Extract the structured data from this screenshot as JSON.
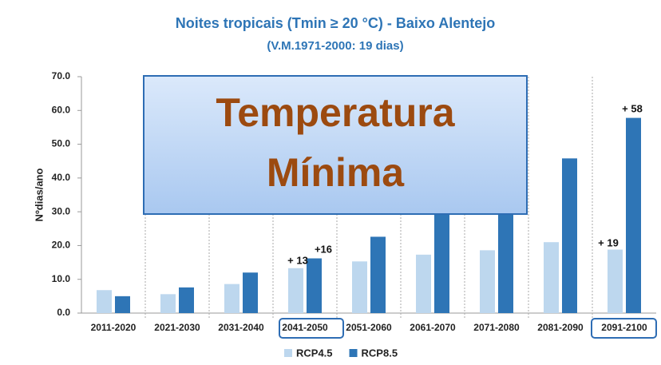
{
  "chart_data": {
    "type": "bar",
    "title": "Noites tropicais (Tmin ≥ 20 °C) - Baixo Alentejo",
    "subtitle": "(V.M.1971-2000: 19 dias)",
    "y_label": "Nºdias/ano",
    "categories": [
      "2011-2020",
      "2021-2030",
      "2031-2040",
      "2041-2050",
      "2051-2060",
      "2061-2070",
      "2071-2080",
      "2081-2090",
      "2091-2100"
    ],
    "series": [
      {
        "name": "RCP4.5",
        "color": "#bdd7ee",
        "values": [
          6.8,
          5.6,
          8.6,
          13.3,
          15.3,
          17.3,
          18.6,
          21.0,
          18.8
        ]
      },
      {
        "name": "RCP8.5",
        "color": "#2e75b6",
        "values": [
          5.0,
          7.6,
          12.0,
          16.2,
          22.6,
          32.0,
          33.0,
          45.8,
          57.8
        ]
      }
    ],
    "ylim": [
      0,
      70
    ],
    "yticks": [
      {
        "value": 0,
        "label": "0.0"
      },
      {
        "value": 10,
        "label": "10.0"
      },
      {
        "value": 20,
        "label": "20.0"
      },
      {
        "value": 30,
        "label": "30.0"
      },
      {
        "value": 40,
        "label": "40.0"
      },
      {
        "value": 50,
        "label": "50.0"
      },
      {
        "value": 60,
        "label": "60.0"
      },
      {
        "value": 70,
        "label": "70.0"
      }
    ],
    "annotations": [
      "+ 13",
      "+16",
      "+ 19",
      "+ 58"
    ],
    "overlay_lines": [
      "Temperatura",
      "Mínima"
    ]
  }
}
